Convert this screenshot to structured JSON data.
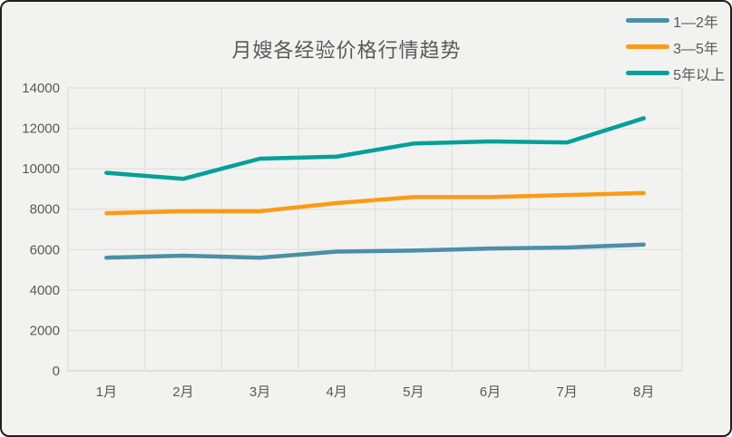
{
  "chart_data": {
    "type": "line",
    "title": "月嫂各经验价格行情趋势",
    "categories": [
      "1月",
      "2月",
      "3月",
      "4月",
      "5月",
      "6月",
      "7月",
      "8月"
    ],
    "series": [
      {
        "name": "1—2年",
        "color": "#4a8fa6",
        "values": [
          5600,
          5700,
          5600,
          5900,
          5950,
          6050,
          6100,
          6250
        ]
      },
      {
        "name": "3—5年",
        "color": "#fc9b13",
        "values": [
          7800,
          7900,
          7900,
          8300,
          8600,
          8600,
          8700,
          8800
        ]
      },
      {
        "name": "5年以上",
        "color": "#00a198",
        "values": [
          9800,
          9500,
          10500,
          10600,
          11250,
          11350,
          11300,
          12500
        ]
      }
    ],
    "xlabel": "",
    "ylabel": "",
    "ylim": [
      0,
      14000
    ],
    "yticks": [
      0,
      2000,
      4000,
      6000,
      8000,
      10000,
      12000,
      14000
    ],
    "grid": "on",
    "legend_position": "top-right"
  },
  "colors": {
    "background": "#f2f2f1",
    "gridline": "#e2e2e0",
    "axis_line": "#d6d6d4",
    "text": "#595959",
    "frame_border": "#1f1f1f"
  }
}
